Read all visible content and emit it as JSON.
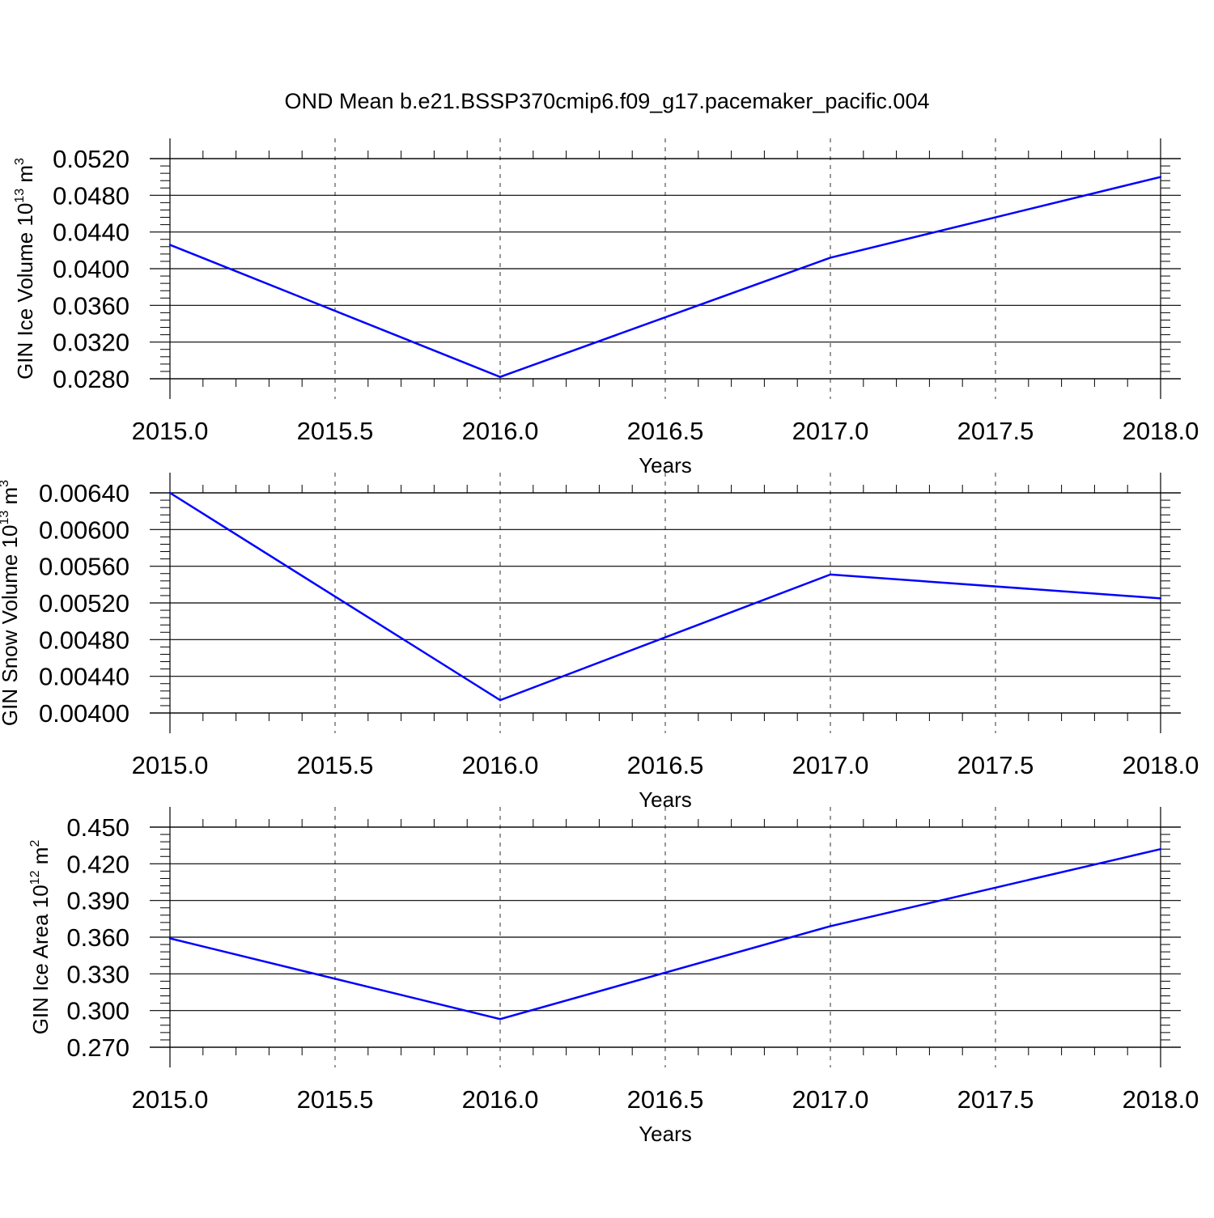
{
  "title": "OND Mean b.e21.BSSP370cmip6.f09_g17.pacemaker_pacific.004",
  "line_color": "#0000ff",
  "chart_data": [
    {
      "type": "line",
      "ylabel": "GIN Ice Volume 10",
      "ylabel_exp": "13",
      "ylabel_unit": "m",
      "ylabel_unit_exp": "3",
      "xlabel": "Years",
      "xlim": [
        2015.0,
        2018.0
      ],
      "ylim": [
        0.028,
        0.052
      ],
      "xticks": [
        "2015.0",
        "2015.5",
        "2016.0",
        "2016.5",
        "2017.0",
        "2017.5",
        "2018.0"
      ],
      "yticks": [
        "0.0280",
        "0.0320",
        "0.0360",
        "0.0400",
        "0.0440",
        "0.0480",
        "0.0520"
      ],
      "x": [
        2015,
        2016,
        2017,
        2018
      ],
      "y": [
        0.0426,
        0.0282,
        0.0412,
        0.05
      ],
      "grid": "vertical dashed"
    },
    {
      "type": "line",
      "ylabel": "GIN Snow Volume 10",
      "ylabel_exp": "13",
      "ylabel_unit": "m",
      "ylabel_unit_exp": "3",
      "xlabel": "Years",
      "xlim": [
        2015.0,
        2018.0
      ],
      "ylim": [
        0.004,
        0.0064
      ],
      "xticks": [
        "2015.0",
        "2015.5",
        "2016.0",
        "2016.5",
        "2017.0",
        "2017.5",
        "2018.0"
      ],
      "yticks": [
        "0.00400",
        "0.00440",
        "0.00480",
        "0.00520",
        "0.00560",
        "0.00600",
        "0.00640"
      ],
      "x": [
        2015,
        2016,
        2017,
        2018
      ],
      "y": [
        0.0064,
        0.00414,
        0.00551,
        0.00525
      ],
      "grid": "vertical dashed"
    },
    {
      "type": "line",
      "ylabel": "GIN Ice Area 10",
      "ylabel_exp": "12",
      "ylabel_unit": "m",
      "ylabel_unit_exp": "2",
      "xlabel": "Years",
      "xlim": [
        2015.0,
        2018.0
      ],
      "ylim": [
        0.27,
        0.45
      ],
      "xticks": [
        "2015.0",
        "2015.5",
        "2016.0",
        "2016.5",
        "2017.0",
        "2017.5",
        "2018.0"
      ],
      "yticks": [
        "0.270",
        "0.300",
        "0.330",
        "0.360",
        "0.390",
        "0.420",
        "0.450"
      ],
      "x": [
        2015,
        2016,
        2017,
        2018
      ],
      "y": [
        0.359,
        0.293,
        0.369,
        0.432
      ],
      "grid": "vertical dashed"
    }
  ]
}
